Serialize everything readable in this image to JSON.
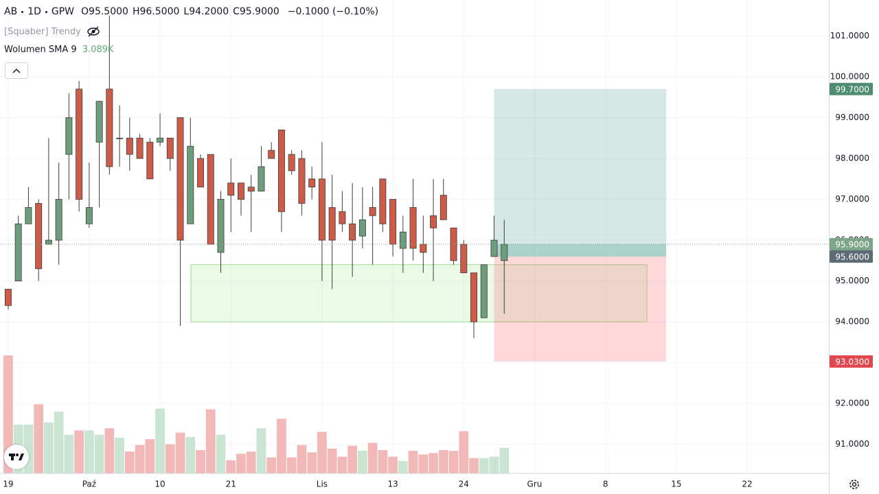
{
  "header": {
    "symbol": "AB",
    "interval": "1D",
    "exchange": "GPW",
    "ohlc": [
      {
        "key": "O",
        "value": "95.5000"
      },
      {
        "key": "H",
        "value": "96.5000"
      },
      {
        "key": "L",
        "value": "94.2000"
      },
      {
        "key": "C",
        "value": "95.9000"
      }
    ],
    "change": "−0.1000 (−0.10%)"
  },
  "indicators": [
    {
      "name": "[Squaber] Trendy"
    },
    {
      "name": "Wolumen SMA 9",
      "value": "3.089K"
    }
  ],
  "chart_data": {
    "type": "candlestick",
    "x": [
      0,
      1,
      2,
      3,
      4,
      5,
      6,
      7,
      8,
      9,
      10,
      11,
      12,
      13,
      14,
      15,
      16,
      17,
      18,
      19,
      20,
      21,
      22,
      23,
      24,
      25,
      26,
      27,
      28,
      29,
      30,
      31,
      32,
      33,
      34,
      35,
      36,
      37,
      38,
      39,
      40,
      41,
      42,
      43,
      44,
      45,
      46,
      47,
      48,
      49
    ],
    "open": [
      94.8,
      95.0,
      96.4,
      96.9,
      95.9,
      96.0,
      98.1,
      99.7,
      96.4,
      98.4,
      99.7,
      98.5,
      98.5,
      98.5,
      98.4,
      98.4,
      98.5,
      99.0,
      96.4,
      98.0,
      98.1,
      95.7,
      97.4,
      97.4,
      97.3,
      97.2,
      98.2,
      98.7,
      98.1,
      98.0,
      97.5,
      97.5,
      96.8,
      96.7,
      96.4,
      96.1,
      96.8,
      97.5,
      97.0,
      95.8,
      96.8,
      95.9,
      96.6,
      97.1,
      96.3,
      95.9,
      95.2,
      94.1,
      95.6,
      95.5
    ],
    "high": [
      94.8,
      96.6,
      97.3,
      97.0,
      98.5,
      97.9,
      99.6,
      99.9,
      97.9,
      99.4,
      101.5,
      99.3,
      99.0,
      98.6,
      98.5,
      99.1,
      98.5,
      99.0,
      99.0,
      98.1,
      98.1,
      97.2,
      98.0,
      97.4,
      97.6,
      98.3,
      98.4,
      98.7,
      98.2,
      98.2,
      97.8,
      98.4,
      97.6,
      97.2,
      97.4,
      97.3,
      97.3,
      97.5,
      97.0,
      96.6,
      97.5,
      96.6,
      97.5,
      97.5,
      96.3,
      96.0,
      95.2,
      95.4,
      96.6,
      96.5
    ],
    "low": [
      94.3,
      95.0,
      96.4,
      95.0,
      95.9,
      95.4,
      97.0,
      96.7,
      96.3,
      96.8,
      97.6,
      97.8,
      97.7,
      98.0,
      97.5,
      98.3,
      97.7,
      93.9,
      96.4,
      97.3,
      95.9,
      95.2,
      96.2,
      96.6,
      96.2,
      97.2,
      98.0,
      96.2,
      97.6,
      96.6,
      97.0,
      95.0,
      94.8,
      96.2,
      95.1,
      95.8,
      95.4,
      96.2,
      95.6,
      95.2,
      95.5,
      95.2,
      95.0,
      96.5,
      95.4,
      95.2,
      93.6,
      94.1,
      95.6,
      94.2
    ],
    "close": [
      94.4,
      96.4,
      96.8,
      95.3,
      96.0,
      97.0,
      99.0,
      97.0,
      96.8,
      99.4,
      97.8,
      98.5,
      98.1,
      98.0,
      97.5,
      98.5,
      98.0,
      96.0,
      98.3,
      97.3,
      95.9,
      97.0,
      97.1,
      97.0,
      97.2,
      97.8,
      98.0,
      96.7,
      97.7,
      96.9,
      97.3,
      96.0,
      96.0,
      96.4,
      96.0,
      96.5,
      96.6,
      96.4,
      95.9,
      96.2,
      95.8,
      95.7,
      96.3,
      96.5,
      95.5,
      95.2,
      94.0,
      95.4,
      96.0,
      95.9
    ],
    "volumes": [
      16.2,
      6.7,
      6.7,
      9.5,
      7.0,
      8.5,
      5.3,
      5.9,
      5.9,
      5.3,
      6.2,
      4.9,
      3.0,
      3.9,
      4.7,
      8.9,
      4.0,
      5.6,
      5.0,
      3.2,
      8.8,
      5.3,
      1.8,
      2.7,
      3.0,
      6.2,
      2.2,
      7.5,
      2.2,
      3.9,
      2.9,
      5.7,
      3.4,
      2.3,
      3.8,
      3.1,
      4.2,
      3.2,
      2.3,
      1.7,
      3.1,
      2.6,
      2.8,
      3.2,
      3.1,
      5.8,
      2.1,
      2.1,
      2.3,
      3.5
    ],
    "up_color": "#6e9d7c",
    "down_color": "#cc5c48",
    "volume_up_color": "#c9e4d2",
    "volume_down_color": "#f2b8b8",
    "xlim": [
      -0.81,
      81.07
    ],
    "ylim": [
      90.29,
      101.88
    ],
    "volume_ylim": [
      0,
      65
    ],
    "xticks": [
      {
        "value": 0,
        "label": "19"
      },
      {
        "value": 8,
        "label": "Paź"
      },
      {
        "value": 15,
        "label": "10"
      },
      {
        "value": 22,
        "label": "21"
      },
      {
        "value": 31,
        "label": "Lis"
      },
      {
        "value": 38,
        "label": "13"
      },
      {
        "value": 45,
        "label": "24"
      },
      {
        "value": 52,
        "label": "Gru"
      },
      {
        "value": 59,
        "label": "8"
      },
      {
        "value": 66,
        "label": "15"
      },
      {
        "value": 73,
        "label": "22"
      }
    ],
    "yticks": [
      {
        "value": 91,
        "label": "91.0000"
      },
      {
        "value": 92,
        "label": "92.0000"
      },
      {
        "value": 93,
        "label": "93.0000"
      },
      {
        "value": 94,
        "label": "94.0000"
      },
      {
        "value": 95,
        "label": "95.0000"
      },
      {
        "value": 96,
        "label": "96.0000"
      },
      {
        "value": 97,
        "label": "97.0000"
      },
      {
        "value": 98,
        "label": "98.0000"
      },
      {
        "value": 99,
        "label": "99.0000"
      },
      {
        "value": 100,
        "label": "100.0000"
      },
      {
        "value": 101,
        "label": "101.0000"
      }
    ],
    "grid": true,
    "zone": {
      "top": 95.4,
      "bottom": 94.0,
      "from": 18.05,
      "to": 63.1
    },
    "position": {
      "from": 48.0,
      "to": 65.0,
      "target": {
        "value": 99.7,
        "label": "99.7000"
      },
      "entry": {
        "value": 95.6,
        "label": "95.6000"
      },
      "stop": {
        "value": 93.03,
        "label": "93.0300"
      }
    },
    "last_price": {
      "value": 95.9,
      "label": "95.9000"
    }
  }
}
